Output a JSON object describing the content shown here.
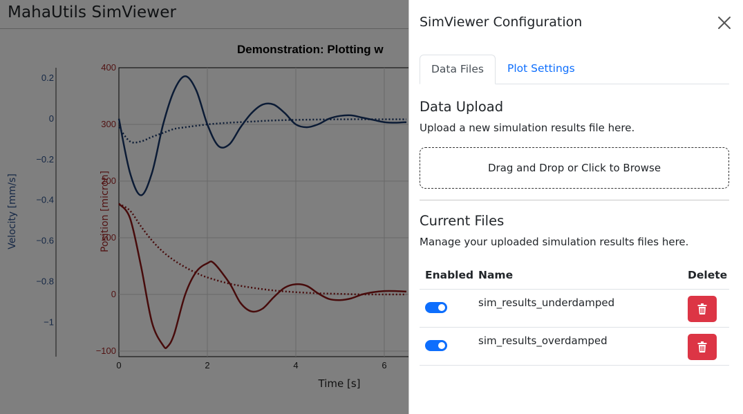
{
  "app": {
    "title": "MahaUtils SimViewer"
  },
  "chart_data": {
    "type": "line",
    "title": "Demonstration: Plotting w",
    "xlabel": "Time [s]",
    "x_ticks": [
      "0",
      "2",
      "4",
      "6"
    ],
    "xlim": [
      0,
      6.5
    ],
    "y_axes": [
      {
        "label": "Velocity [mm/s]",
        "color": "#2a4f8a",
        "ticks": [
          "0.2",
          "0",
          "−0.2",
          "−0.4",
          "−0.6",
          "−0.8",
          "−1"
        ]
      },
      {
        "label": "Position [micron]",
        "color": "#a32626",
        "ticks": [
          "400",
          "300",
          "200",
          "100",
          "0",
          "−100"
        ]
      }
    ],
    "ylim_position": [
      -110,
      400
    ],
    "series": [
      {
        "color": "#17366b",
        "style": "solid",
        "x": [
          0,
          0.25,
          0.5,
          0.75,
          1,
          1.25,
          1.5,
          1.75,
          2,
          2.25,
          2.5,
          2.75,
          3,
          3.25,
          3.5,
          3.75,
          4,
          4.25,
          4.5,
          4.75,
          5,
          5.25,
          5.5,
          5.75,
          6,
          6.25,
          6.5
        ],
        "y": [
          310,
          215,
          175,
          215,
          300,
          360,
          385,
          360,
          300,
          262,
          265,
          295,
          320,
          335,
          335,
          320,
          300,
          295,
          300,
          310,
          315,
          316,
          312,
          308,
          304,
          303,
          304
        ]
      },
      {
        "color": "#17366b",
        "style": "dotted",
        "x": [
          0,
          0.25,
          0.5,
          0.75,
          1,
          1.25,
          1.5,
          2,
          2.5,
          3,
          3.5,
          4,
          5,
          6,
          6.5
        ],
        "y": [
          295,
          270,
          270,
          278,
          285,
          292,
          295,
          300,
          303,
          305,
          307,
          308,
          309,
          309,
          309
        ]
      },
      {
        "color": "#8f1616",
        "style": "solid",
        "x": [
          0,
          0.25,
          0.5,
          0.75,
          1,
          1.1,
          1.25,
          1.5,
          1.75,
          2,
          2.15,
          2.5,
          2.75,
          3,
          3.25,
          3.5,
          3.75,
          4,
          4.25,
          4.5,
          4.75,
          5,
          5.25,
          5.5,
          5.75,
          6,
          6.25,
          6.5
        ],
        "y": [
          160,
          135,
          50,
          -50,
          -90,
          -92,
          -70,
          0,
          40,
          55,
          55,
          20,
          -15,
          -30,
          -25,
          -5,
          12,
          18,
          15,
          2,
          -8,
          -10,
          -7,
          0,
          4,
          6,
          6,
          5
        ]
      },
      {
        "color": "#8f1616",
        "style": "dotted",
        "x": [
          0,
          0.25,
          0.5,
          0.75,
          1,
          1.25,
          1.5,
          1.75,
          2,
          2.5,
          3,
          3.5,
          4,
          4.5,
          5,
          5.5,
          6,
          6.5
        ],
        "y": [
          160,
          148,
          120,
          95,
          75,
          60,
          48,
          38,
          30,
          19,
          12,
          7,
          4,
          2,
          1,
          0,
          0,
          0
        ]
      }
    ]
  },
  "panel": {
    "title": "SimViewer Configuration",
    "close_icon": "close-icon",
    "tabs": [
      {
        "label": "Data Files",
        "active": true
      },
      {
        "label": "Plot Settings",
        "active": false
      }
    ],
    "upload": {
      "heading": "Data Upload",
      "description": "Upload a new simulation results file here.",
      "dropzone_text": "Drag and Drop or Click to Browse"
    },
    "files": {
      "heading": "Current Files",
      "description": "Manage your uploaded simulation results files here.",
      "columns": [
        "Enabled",
        "Name",
        "Delete"
      ],
      "rows": [
        {
          "enabled": true,
          "name": "sim_results_underdamped",
          "delete_icon": "trash-icon"
        },
        {
          "enabled": true,
          "name": "sim_results_overdamped",
          "delete_icon": "trash-icon"
        }
      ]
    },
    "colors": {
      "accent": "#0d6efd",
      "danger": "#dc3545"
    }
  }
}
